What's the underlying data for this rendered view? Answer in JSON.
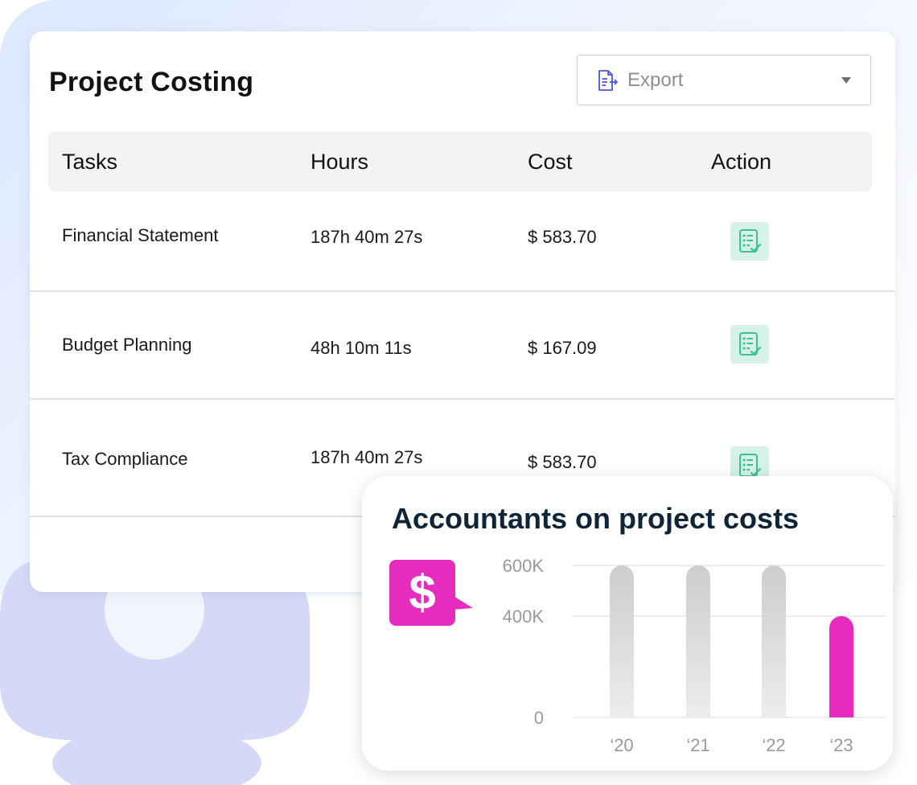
{
  "card": {
    "title": "Project Costing",
    "export": {
      "label": "Export",
      "icon": "export-document-icon"
    }
  },
  "table": {
    "headers": [
      "Tasks",
      "Hours",
      "Cost",
      "Action"
    ],
    "rows": [
      {
        "task": "Financial Statement",
        "hours": "187h 40m 27s",
        "cost": "$ 583.70",
        "action_icon": "checklist-icon"
      },
      {
        "task": "Budget Planning",
        "hours": "48h 10m 11s",
        "cost": "$ 167.09",
        "action_icon": "checklist-icon"
      },
      {
        "task": "Tax Compliance",
        "hours": "187h 40m 27s",
        "cost": "$ 583.70",
        "action_icon": "checklist-icon"
      }
    ]
  },
  "colors": {
    "action_bg": "#d6f2e8",
    "action_icon": "#3cbf94",
    "accent_magenta": "#e62cbf",
    "bar_gray": "#cfcfcf",
    "export_icon": "#4a56d8"
  },
  "chart_card": {
    "title": "Accountants on project costs",
    "badge_icon": "dollar-sign-icon",
    "badge_text": "$"
  },
  "chart_data": {
    "type": "bar",
    "title": "Accountants on project costs",
    "categories": [
      "‘20",
      "‘21",
      "‘22",
      "‘23"
    ],
    "values": [
      600000,
      600000,
      600000,
      400000
    ],
    "highlight_index": 3,
    "ylim": [
      0,
      600000
    ],
    "yticks": [
      {
        "value": 0,
        "label": "0"
      },
      {
        "value": 400000,
        "label": "400K"
      },
      {
        "value": 600000,
        "label": "600K"
      }
    ],
    "grid": true
  }
}
